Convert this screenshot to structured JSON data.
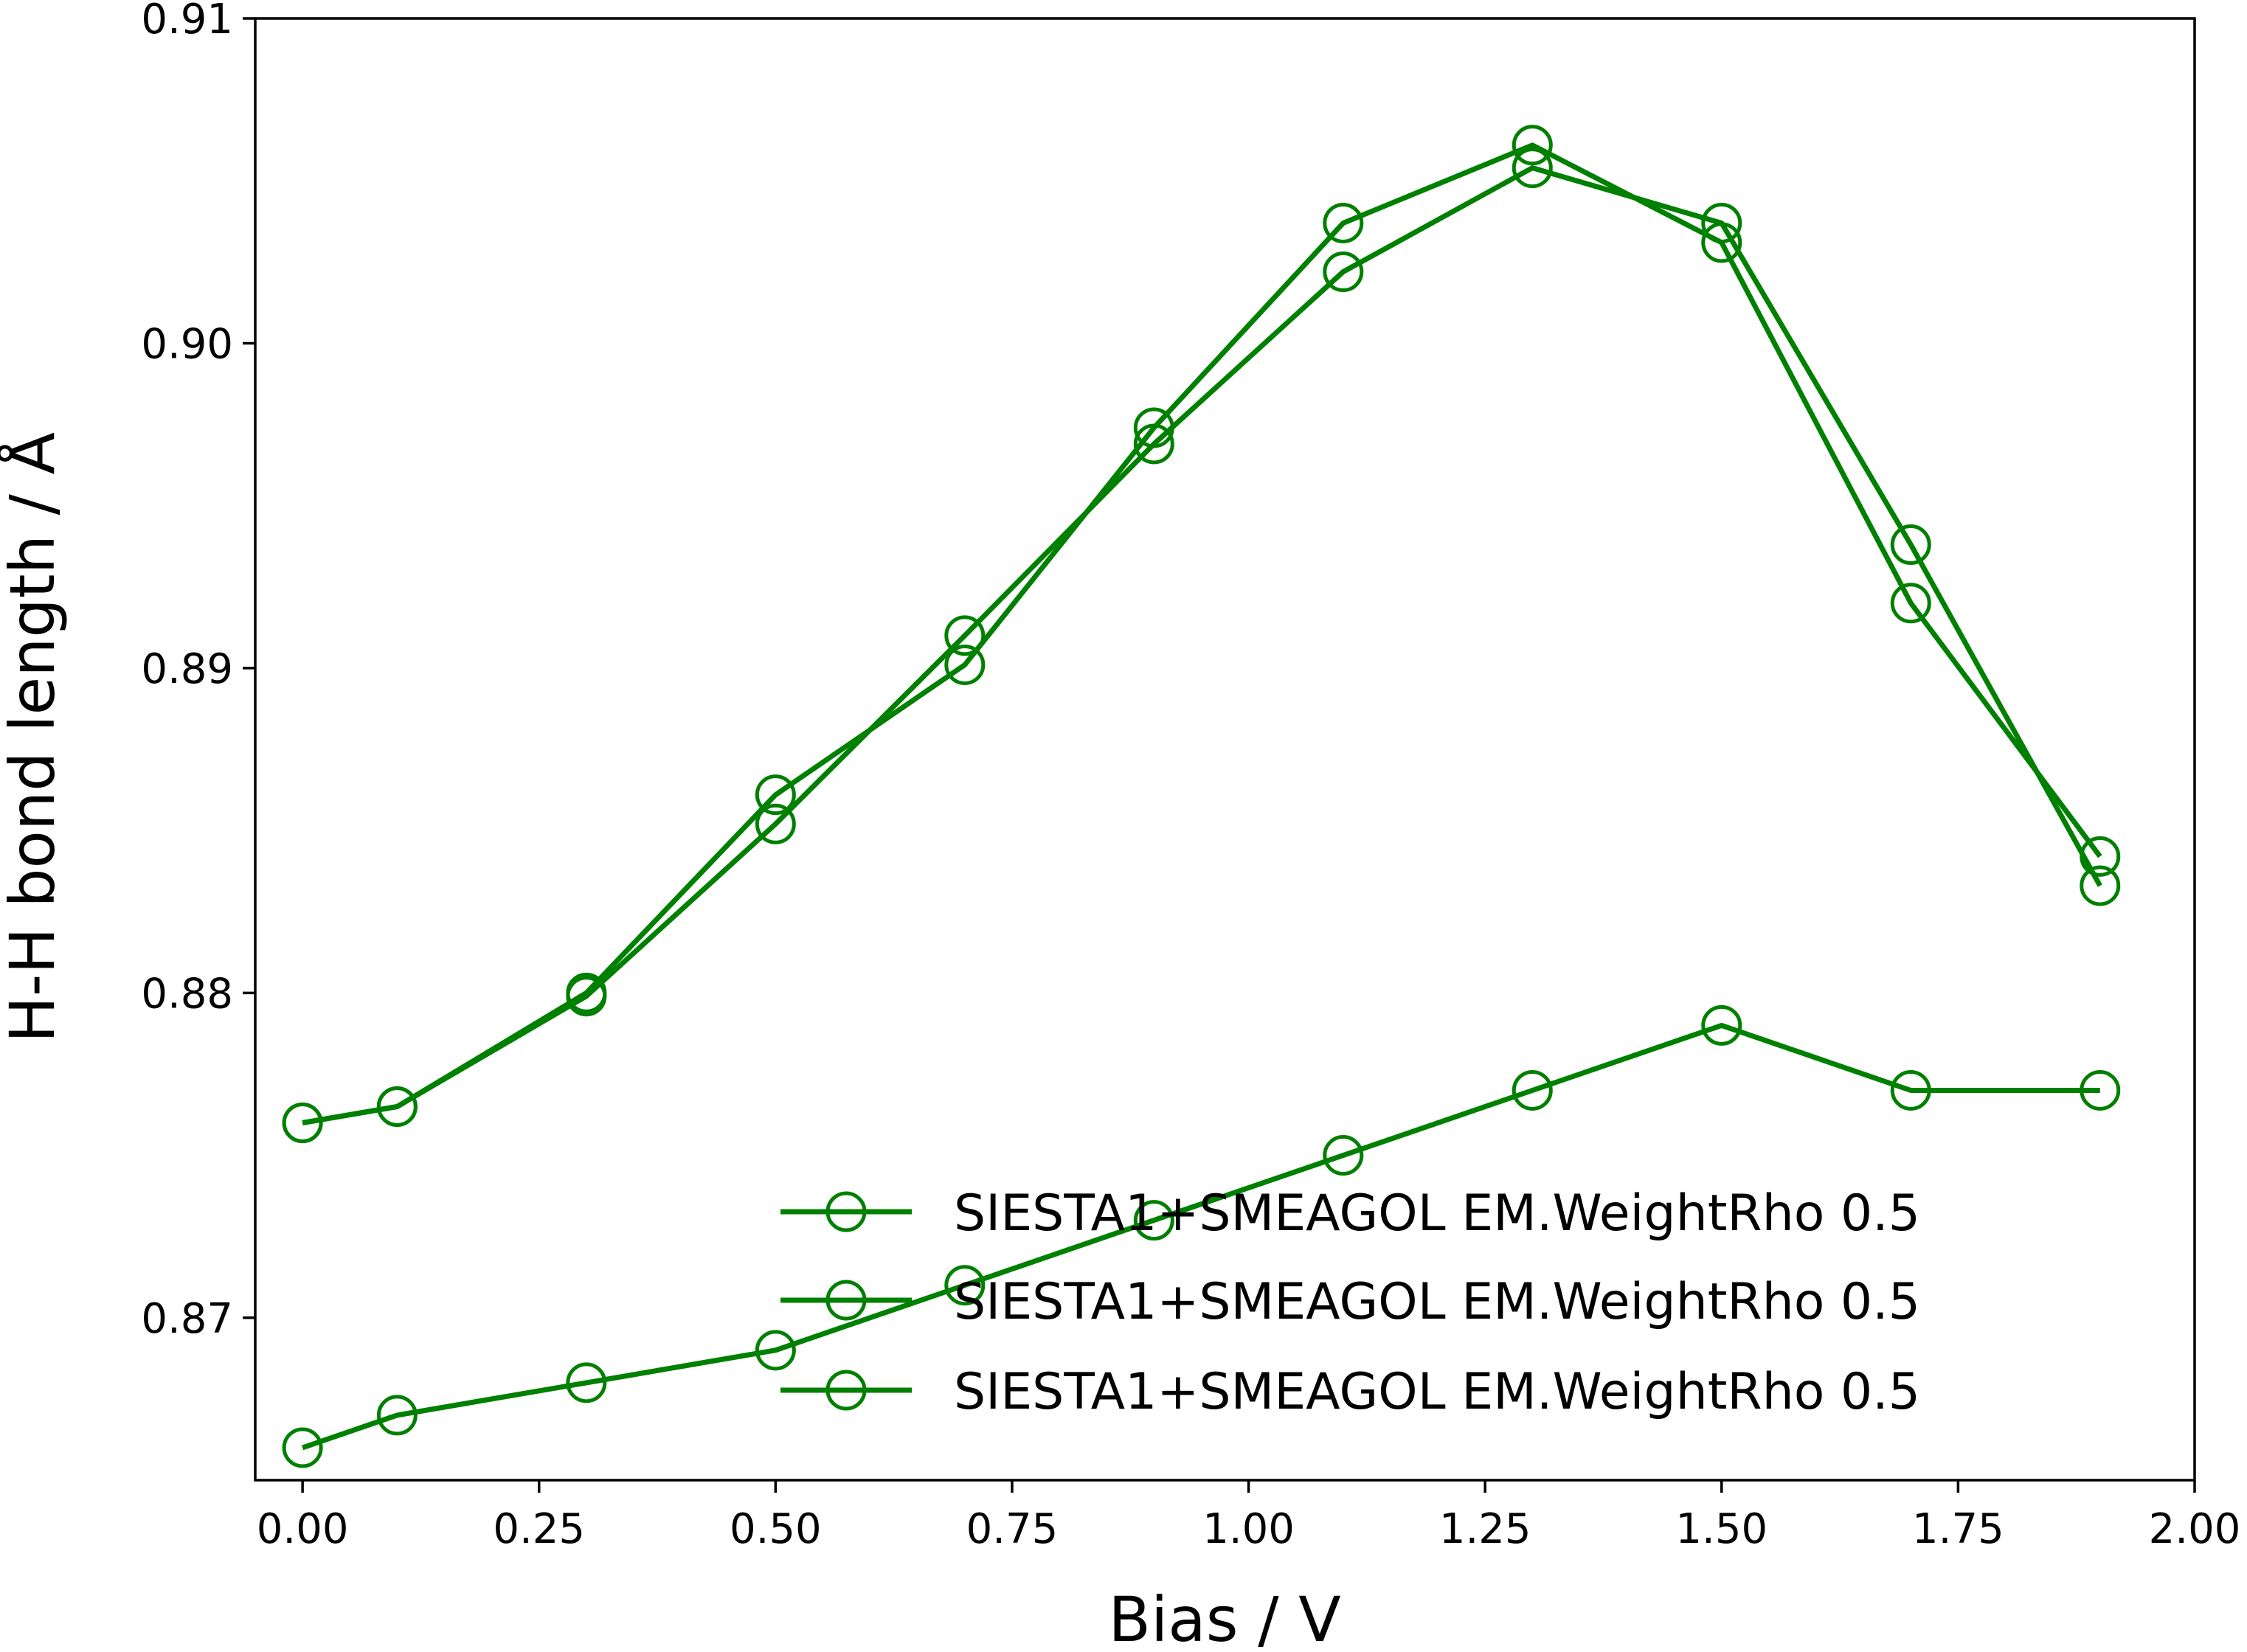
{
  "chart_data": {
    "type": "line",
    "title": "",
    "xlabel": "Bias / V",
    "ylabel": "H-H bond length / Å",
    "xlim": [
      -0.05,
      2.0
    ],
    "ylim": [
      0.865,
      0.91
    ],
    "x_ticks": [
      0.0,
      0.25,
      0.5,
      0.75,
      1.0,
      1.25,
      1.5,
      1.75,
      2.0
    ],
    "x_tick_labels": [
      "0.00",
      "0.25",
      "0.50",
      "0.75",
      "1.00",
      "1.25",
      "1.50",
      "1.75",
      "2.00"
    ],
    "y_ticks": [
      0.87,
      0.88,
      0.89,
      0.9,
      0.91
    ],
    "y_tick_labels": [
      "0.87",
      "0.88",
      "0.89",
      "0.90",
      "0.91"
    ],
    "grid": false,
    "legend_position": "lower-right",
    "line_color": "#008000",
    "marker": "open-circle",
    "series": [
      {
        "name": "SIESTA1+SMEAGOL EM.WeightRho 0.5",
        "x": [
          0.0,
          0.1,
          0.3,
          0.5,
          0.7,
          0.9,
          1.1,
          1.3,
          1.5,
          1.7,
          1.9
        ],
        "y": [
          0.876,
          0.8765,
          0.88,
          0.8861,
          0.8901,
          0.8974,
          0.9037,
          0.9061,
          0.9031,
          0.892,
          0.8842
        ]
      },
      {
        "name": "SIESTA1+SMEAGOL EM.WeightRho 0.5",
        "x": [
          0.0,
          0.1,
          0.3,
          0.5,
          0.7,
          0.9,
          1.1,
          1.3,
          1.5,
          1.7,
          1.9
        ],
        "y": [
          0.876,
          0.8765,
          0.8799,
          0.8852,
          0.891,
          0.8969,
          0.9022,
          0.9054,
          0.9037,
          0.8938,
          0.8833
        ]
      },
      {
        "name": "SIESTA1+SMEAGOL EM.WeightRho 0.5",
        "x": [
          0.0,
          0.1,
          0.3,
          0.5,
          0.7,
          0.9,
          1.1,
          1.3,
          1.5,
          1.7,
          1.9
        ],
        "y": [
          0.866,
          0.867,
          0.868,
          0.869,
          0.871,
          0.873,
          0.875,
          0.877,
          0.879,
          0.877,
          0.877
        ]
      }
    ]
  }
}
